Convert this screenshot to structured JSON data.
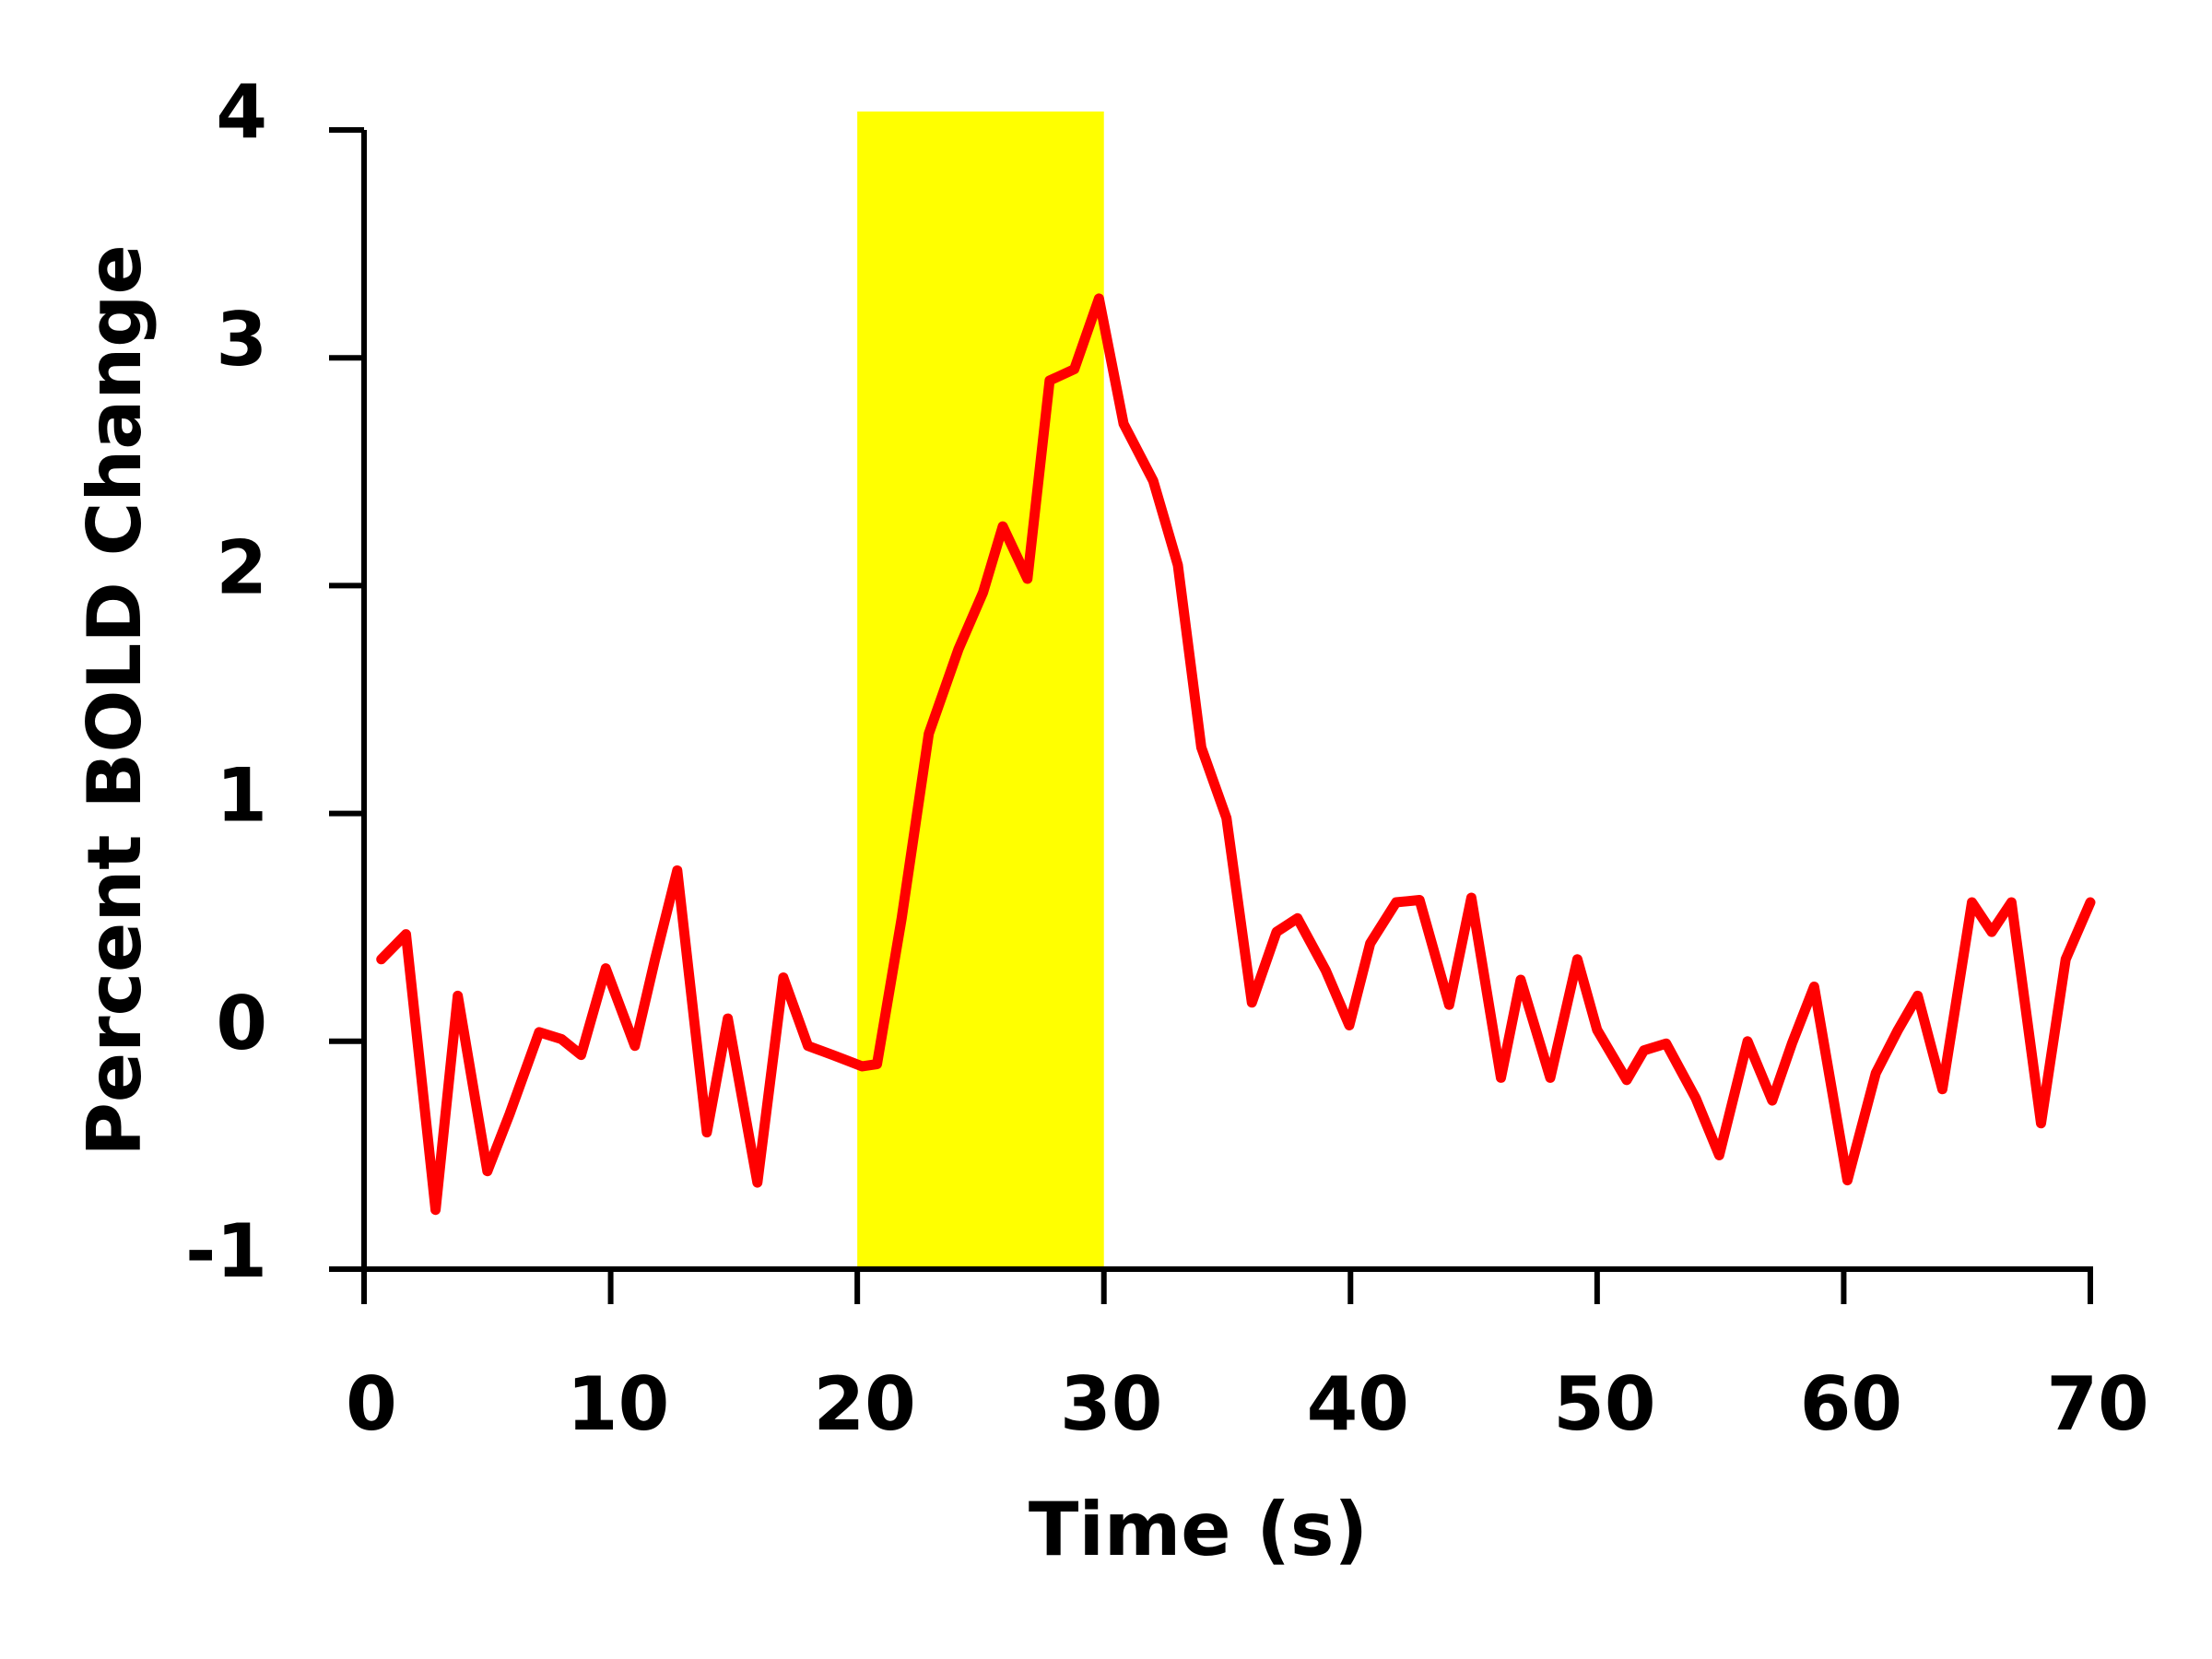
{
  "chart_data": {
    "type": "line",
    "x_label": "Time (s)",
    "y_label": "Percent BOLD Change",
    "xlim": [
      0,
      70
    ],
    "xticks": [
      0,
      10,
      20,
      30,
      40,
      50,
      60,
      70
    ],
    "ylim": [
      -1,
      4
    ],
    "yticks": [
      -1,
      0,
      1,
      2,
      3,
      4
    ],
    "highlight": {
      "x": [
        20,
        30
      ],
      "color": "#ffff00"
    },
    "series": [
      {
        "color": "#ff0000",
        "x": [
          0.7,
          1.7,
          2.9,
          3.8,
          5.0,
          5.9,
          7.1,
          8.0,
          8.8,
          9.8,
          10.98,
          11.8,
          12.7,
          13.9,
          14.75,
          15.95,
          17.0,
          18.0,
          19.0,
          20.2,
          20.8,
          21.8,
          22.9,
          24.1,
          25.1,
          25.9,
          26.9,
          27.8,
          28.8,
          29.8,
          30.8,
          32.0,
          33.0,
          33.95,
          34.97,
          36.0,
          37.0,
          37.85,
          39.0,
          39.95,
          40.8,
          41.85,
          42.8,
          44.0,
          44.9,
          46.1,
          46.9,
          48.1,
          49.2,
          50.0,
          51.2,
          51.9,
          52.8,
          54.0,
          54.95,
          56.1,
          57.1,
          57.9,
          58.8,
          60.15,
          61.3,
          62.2,
          63.0,
          64.0,
          65.2,
          66.0,
          66.8,
          68.0,
          69.0,
          70.0
        ],
        "values": [
          0.36,
          0.47,
          -0.74,
          0.2,
          -0.57,
          -0.32,
          0.04,
          0.01,
          -0.06,
          0.32,
          -0.02,
          0.36,
          0.75,
          -0.4,
          0.1,
          -0.62,
          0.28,
          -0.02,
          -0.06,
          -0.11,
          -0.1,
          0.54,
          1.35,
          1.72,
          1.97,
          2.26,
          2.03,
          2.9,
          2.95,
          3.26,
          2.71,
          2.46,
          2.09,
          1.29,
          0.98,
          0.17,
          0.48,
          0.54,
          0.31,
          0.07,
          0.43,
          0.61,
          0.62,
          0.16,
          0.63,
          -0.16,
          0.27,
          -0.16,
          0.36,
          0.05,
          -0.17,
          -0.04,
          -0.01,
          -0.25,
          -0.5,
          0.0,
          -0.26,
          -0.01,
          0.24,
          -0.61,
          -0.14,
          0.05,
          0.2,
          -0.21,
          0.61,
          0.48,
          0.61,
          -0.36,
          0.36,
          0.61
        ]
      }
    ]
  }
}
